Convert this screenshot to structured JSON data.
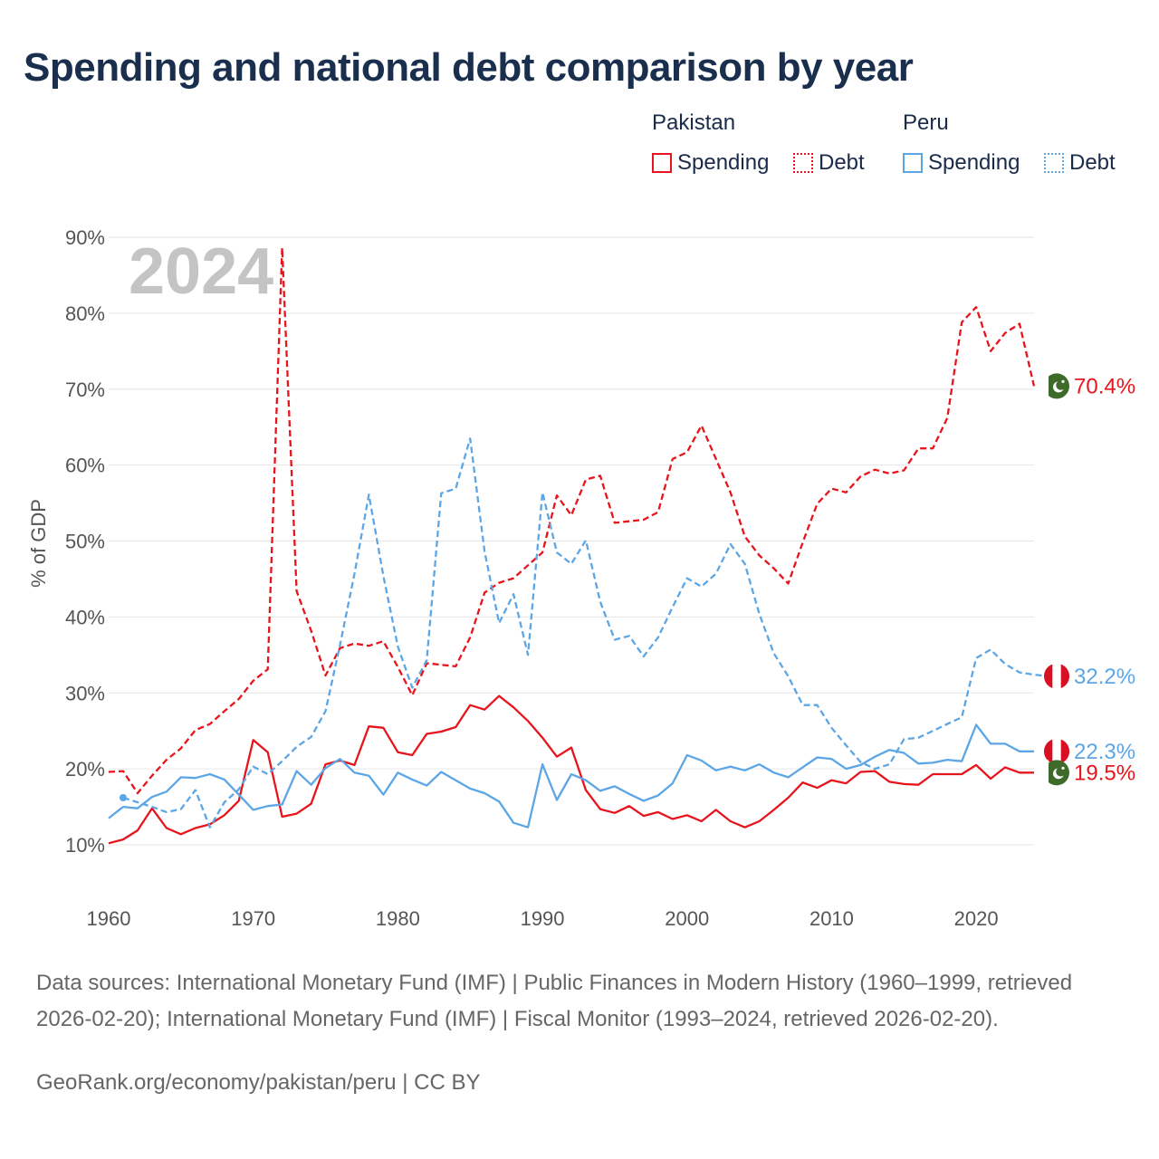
{
  "title": "Spending and national debt comparison by year",
  "legend": {
    "groups": [
      {
        "country": "Pakistan",
        "items": [
          {
            "label": "Spending",
            "style": "solid",
            "color": "#e8141c"
          },
          {
            "label": "Debt",
            "style": "dotted",
            "color": "#e8141c"
          }
        ]
      },
      {
        "country": "Peru",
        "items": [
          {
            "label": "Spending",
            "style": "solid",
            "color": "#5ca6e6"
          },
          {
            "label": "Debt",
            "style": "dotted",
            "color": "#5ca6e6"
          }
        ]
      }
    ]
  },
  "footer": {
    "sources": "Data sources: International Monetary Fund (IMF) | Public Finances in Modern History (1960–1999, retrieved 2026-02-20); International Monetary Fund (IMF) | Fiscal Monitor (1993–2024, retrieved 2026-02-20).",
    "link": "GeoRank.org/economy/pakistan/peru | CC BY"
  },
  "colors": {
    "pakistan": "#e8141c",
    "peru": "#5ca6e6",
    "grid": "#e6e6e6",
    "axis_text": "#555555",
    "year_watermark": "#c4c4c4"
  },
  "chart_data": {
    "type": "line",
    "year_label": "2024",
    "ylabel": "% of GDP",
    "ylim": [
      10,
      90
    ],
    "xlim": [
      1960,
      2024
    ],
    "yticks": [
      10,
      20,
      30,
      40,
      50,
      60,
      70,
      80,
      90
    ],
    "ytick_labels": [
      "10%",
      "20%",
      "30%",
      "40%",
      "50%",
      "60%",
      "70%",
      "80%",
      "90%"
    ],
    "xticks": [
      1960,
      1970,
      1980,
      1990,
      2000,
      2010,
      2020
    ],
    "xtick_labels": [
      "1960",
      "1970",
      "1980",
      "1990",
      "2000",
      "2010",
      "2020"
    ],
    "series": [
      {
        "name": "Pakistan Debt",
        "country": "Pakistan",
        "metric": "Debt",
        "color": "#e8141c",
        "dash": true,
        "start": 1960,
        "values": [
          19.6,
          19.7,
          16.8,
          19.1,
          21.2,
          22.7,
          25.1,
          25.9,
          27.6,
          29.2,
          31.6,
          33.1,
          88.6,
          43.4,
          38.2,
          32.3,
          35.9,
          36.5,
          36.2,
          36.8,
          33.4,
          29.7,
          33.9,
          33.7,
          33.5,
          37.3,
          43.2,
          44.5,
          45.1,
          46.8,
          48.5,
          56.0,
          53.4,
          58.1,
          58.6,
          52.4,
          52.6,
          52.8,
          53.8,
          60.8,
          61.7,
          65.2,
          60.8,
          56.4,
          50.6,
          48.1,
          46.4,
          44.4,
          49.8,
          54.9,
          56.9,
          56.4,
          58.5,
          59.4,
          58.9,
          59.3,
          62.2,
          62.2,
          66.2,
          78.8,
          80.8,
          75.0,
          77.4,
          78.6,
          70.4
        ]
      },
      {
        "name": "Pakistan Spending",
        "country": "Pakistan",
        "metric": "Spending",
        "color": "#e8141c",
        "dash": false,
        "start": 1960,
        "values": [
          10.2,
          10.7,
          11.9,
          14.8,
          12.2,
          11.4,
          12.2,
          12.7,
          13.9,
          15.8,
          23.8,
          22.2,
          13.7,
          14.1,
          15.4,
          20.6,
          21.1,
          20.5,
          25.6,
          25.4,
          22.2,
          21.8,
          24.6,
          24.9,
          25.5,
          28.4,
          27.8,
          29.6,
          28.1,
          26.3,
          24.1,
          21.6,
          22.8,
          17.2,
          14.7,
          14.2,
          15.1,
          13.8,
          14.3,
          13.4,
          13.9,
          13.1,
          14.6,
          13.1,
          12.3,
          13.1,
          14.6,
          16.2,
          18.2,
          17.5,
          18.5,
          18.1,
          19.6,
          19.7,
          18.3,
          18.0,
          17.9,
          19.3,
          19.3,
          19.3,
          20.5,
          18.7,
          20.2,
          19.5,
          19.5
        ]
      },
      {
        "name": "Peru Debt",
        "country": "Peru",
        "metric": "Debt",
        "color": "#5ca6e6",
        "dash": true,
        "start": 1961,
        "values": [
          16.2,
          15.6,
          15.0,
          14.3,
          14.7,
          17.2,
          12.3,
          15.6,
          17.3,
          20.3,
          19.3,
          21.0,
          22.9,
          24.2,
          27.6,
          36.3,
          45.7,
          56.1,
          45.4,
          36.1,
          30.7,
          34.3,
          56.3,
          56.9,
          63.5,
          48.6,
          39.2,
          43.0,
          35.0,
          56.4,
          48.5,
          47.0,
          50.1,
          42.0,
          37.0,
          37.5,
          34.8,
          37.3,
          41.3,
          45.1,
          44.0,
          45.7,
          49.6,
          47.0,
          40.4,
          35.2,
          32.2,
          28.4,
          28.4,
          25.4,
          23.1,
          20.9,
          20.0,
          20.6,
          23.9,
          24.1,
          25.0,
          25.9,
          26.8,
          34.6,
          35.7,
          33.8,
          32.7,
          32.4,
          32.2
        ]
      },
      {
        "name": "Peru Spending",
        "country": "Peru",
        "metric": "Spending",
        "color": "#5ca6e6",
        "dash": false,
        "start": 1960,
        "values": [
          13.5,
          15.0,
          14.8,
          16.3,
          17.0,
          18.9,
          18.8,
          19.3,
          18.6,
          16.6,
          14.6,
          15.1,
          15.3,
          19.7,
          17.9,
          20.1,
          21.3,
          19.5,
          19.1,
          16.6,
          19.5,
          18.6,
          17.8,
          19.6,
          18.5,
          17.4,
          16.8,
          15.7,
          12.9,
          12.3,
          20.6,
          15.9,
          19.3,
          18.5,
          17.1,
          17.7,
          16.7,
          15.8,
          16.5,
          18.1,
          21.8,
          21.1,
          19.8,
          20.3,
          19.8,
          20.6,
          19.5,
          18.9,
          20.2,
          21.5,
          21.3,
          20.0,
          20.5,
          21.6,
          22.5,
          22.1,
          20.7,
          20.8,
          21.2,
          21.0,
          25.8,
          23.3,
          23.3,
          22.3,
          22.3
        ]
      }
    ],
    "end_labels": [
      {
        "text": "70.4%",
        "value": 70.4,
        "color": "#e8141c",
        "flag": "pakistan-flag"
      },
      {
        "text": "32.2%",
        "value": 32.2,
        "color": "#5ca6e6",
        "flag": "peru-flag"
      },
      {
        "text": "22.3%",
        "value": 22.3,
        "color": "#5ca6e6",
        "flag": "peru-flag"
      },
      {
        "text": "19.5%",
        "value": 19.5,
        "color": "#e8141c",
        "flag": "pakistan-flag"
      }
    ]
  }
}
